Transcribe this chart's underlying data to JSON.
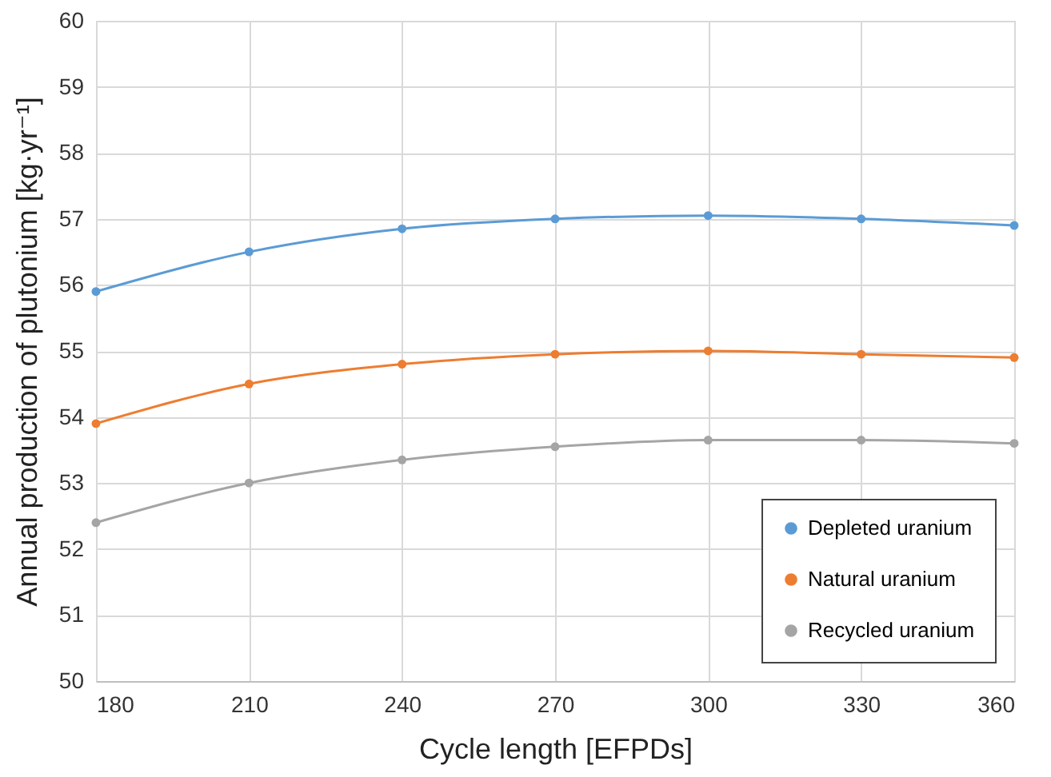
{
  "chart_data": {
    "type": "line",
    "xlabel": "Cycle length [EFPDs]",
    "ylabel": "Annual production of plutonium [kg·yr⁻¹]",
    "x": [
      180,
      210,
      240,
      270,
      300,
      330,
      360
    ],
    "series": [
      {
        "name": "Depleted uranium",
        "color": "#5b9bd5",
        "values": [
          55.9,
          56.5,
          56.85,
          57.0,
          57.05,
          57.0,
          56.9
        ]
      },
      {
        "name": "Natural uranium",
        "color": "#ed7d31",
        "values": [
          53.9,
          54.5,
          54.8,
          54.95,
          55.0,
          54.95,
          54.9
        ]
      },
      {
        "name": "Recycled uranium",
        "color": "#a5a5a5",
        "values": [
          52.4,
          53.0,
          53.35,
          53.55,
          53.65,
          53.65,
          53.6
        ]
      }
    ],
    "xlim": [
      180,
      360
    ],
    "xticks": [
      180,
      210,
      240,
      270,
      300,
      330,
      360
    ],
    "ylim": [
      50,
      60
    ],
    "yticks": [
      50,
      51,
      52,
      53,
      54,
      55,
      56,
      57,
      58,
      59,
      60
    ],
    "grid": true,
    "legend": "bottom right",
    "marker": "circle",
    "line_style": "solid"
  }
}
